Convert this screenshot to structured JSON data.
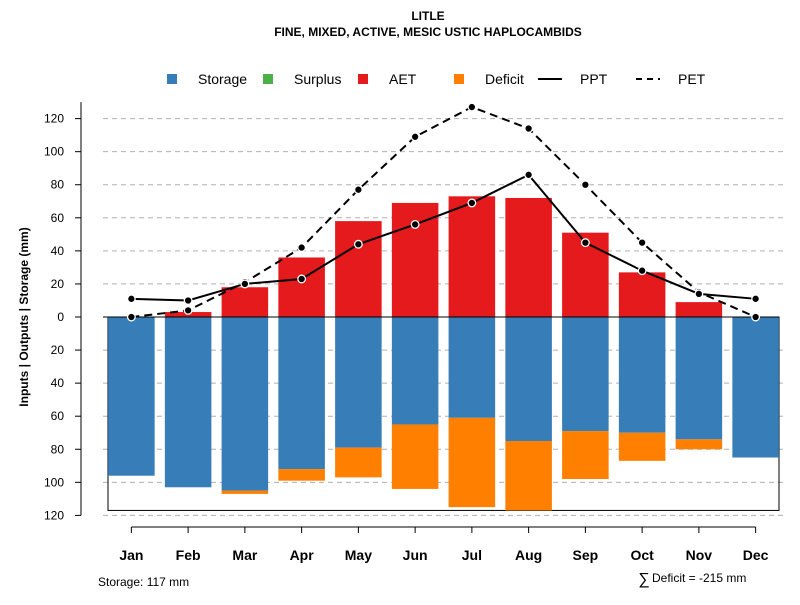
{
  "chart_data": {
    "type": "bar",
    "title": "LITLE",
    "subtitle": "FINE, MIXED, ACTIVE, MESIC USTIC HAPLOCAMBIDS",
    "ylabel": "Inputs | Outputs | Storage    (mm)",
    "ylim": [
      -120,
      130
    ],
    "yticks": [
      120,
      100,
      80,
      60,
      40,
      20,
      0,
      20,
      40,
      60,
      80,
      100,
      120
    ],
    "categories": [
      "Jan",
      "Feb",
      "Mar",
      "Apr",
      "May",
      "Jun",
      "Jul",
      "Aug",
      "Sep",
      "Oct",
      "Nov",
      "Dec"
    ],
    "legend": [
      {
        "name": "Storage",
        "color": "#377EB8",
        "kind": "box"
      },
      {
        "name": "Surplus",
        "color": "#4DAF4A",
        "kind": "box"
      },
      {
        "name": "AET",
        "color": "#E41A1C",
        "kind": "box"
      },
      {
        "name": "Deficit",
        "color": "#FF7F00",
        "kind": "box"
      },
      {
        "name": "PPT",
        "color": "#000000",
        "kind": "solid"
      },
      {
        "name": "PET",
        "color": "#000000",
        "kind": "dashed"
      }
    ],
    "series": [
      {
        "name": "AET",
        "color": "#E41A1C",
        "values": [
          0,
          3,
          18,
          36,
          58,
          69,
          73,
          72,
          51,
          27,
          9,
          0
        ]
      },
      {
        "name": "Storage",
        "color": "#377EB8",
        "values": [
          96,
          103,
          105,
          92,
          79,
          65,
          61,
          75,
          69,
          70,
          74,
          85
        ]
      },
      {
        "name": "Deficit",
        "color": "#FF7F00",
        "values": [
          0,
          0,
          2,
          7,
          18,
          39,
          54,
          42,
          29,
          17,
          6,
          0
        ]
      },
      {
        "name": "PPT",
        "color": "#000000",
        "values": [
          11,
          10,
          20,
          23,
          44,
          56,
          69,
          86,
          45,
          28,
          14,
          11
        ]
      },
      {
        "name": "PET",
        "color": "#000000",
        "values": [
          0,
          4,
          21,
          42,
          77,
          109,
          127,
          114,
          80,
          45,
          15,
          0
        ]
      }
    ],
    "storage_capacity": 117,
    "storage_note": "Storage: 117 mm",
    "deficit_symbol": "∑",
    "deficit_note": "Deficit = -215 mm",
    "grid": true
  }
}
